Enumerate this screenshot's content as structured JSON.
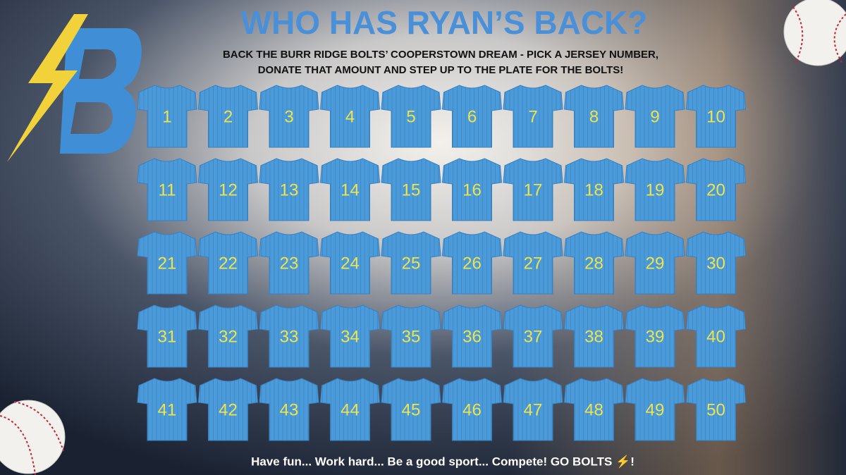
{
  "header": {
    "title": "WHO HAS RYAN’S BACK?",
    "subtitle_lines": [
      "BACK THE BURR RIDGE BOLTS’ COOPERSTOWN DREAM - PICK A JERSEY NUMBER,",
      "DONATE THAT AMOUNT AND STEP UP TO THE PLATE FOR THE BOLTS!"
    ]
  },
  "jerseys": [
    1,
    2,
    3,
    4,
    5,
    6,
    7,
    8,
    9,
    10,
    11,
    12,
    13,
    14,
    15,
    16,
    17,
    18,
    19,
    20,
    21,
    22,
    23,
    24,
    25,
    26,
    27,
    28,
    29,
    30,
    31,
    32,
    33,
    34,
    35,
    36,
    37,
    38,
    39,
    40,
    41,
    42,
    43,
    44,
    45,
    46,
    47,
    48,
    49,
    50
  ],
  "footer": "Have fun... Work hard... Be a good sport... Compete! GO BOLTS ⚡!"
}
